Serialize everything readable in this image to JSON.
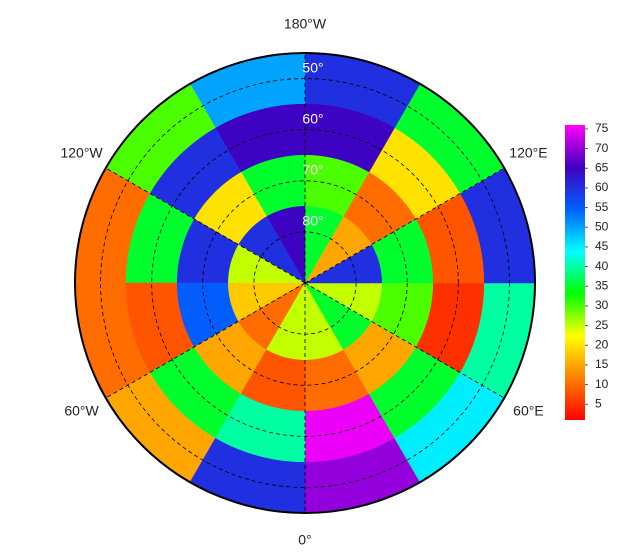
{
  "map": {
    "longitude_labels": [
      {
        "value": 180,
        "label": "180°W"
      },
      {
        "value": 120,
        "label": "120°E"
      },
      {
        "value": -120,
        "label": "120°W"
      },
      {
        "value": 60,
        "label": "60°E"
      },
      {
        "value": -60,
        "label": "60°W"
      },
      {
        "value": 0,
        "label": "0°"
      }
    ],
    "latitude_labels": [
      {
        "value": 50,
        "label": "50°"
      },
      {
        "value": 60,
        "label": "60°"
      },
      {
        "value": 70,
        "label": "70°"
      },
      {
        "value": 80,
        "label": "80°"
      }
    ],
    "lat_range": [
      45,
      90
    ],
    "cells": {
      "lat_bands": [
        45,
        55,
        65,
        75,
        90
      ],
      "lon_edges": [
        0,
        30,
        60,
        90,
        120,
        150,
        180,
        210,
        240,
        270,
        300,
        330,
        360
      ],
      "values": [
        [
          70,
          45,
          40,
          60,
          35,
          60,
          50,
          30,
          10,
          10,
          15,
          60
        ],
        [
          75,
          35,
          5,
          8,
          20,
          65,
          65,
          60,
          35,
          8,
          35,
          40
        ],
        [
          10,
          15,
          30,
          35,
          10,
          30,
          35,
          20,
          60,
          55,
          15,
          8
        ],
        [
          25,
          35,
          25,
          60,
          15,
          35,
          65,
          60,
          25,
          18,
          10,
          25
        ]
      ]
    },
    "colorbar": {
      "ylim": [
        1,
        76
      ],
      "yticks": [
        5,
        10,
        15,
        20,
        25,
        30,
        35,
        40,
        45,
        50,
        55,
        60,
        65,
        70,
        75
      ],
      "colormap": [
        "#ff0000",
        "#ff8000",
        "#ffff00",
        "#00ff00",
        "#00ffff",
        "#0060ff",
        "#4000c0",
        "#ff00ff"
      ]
    }
  }
}
